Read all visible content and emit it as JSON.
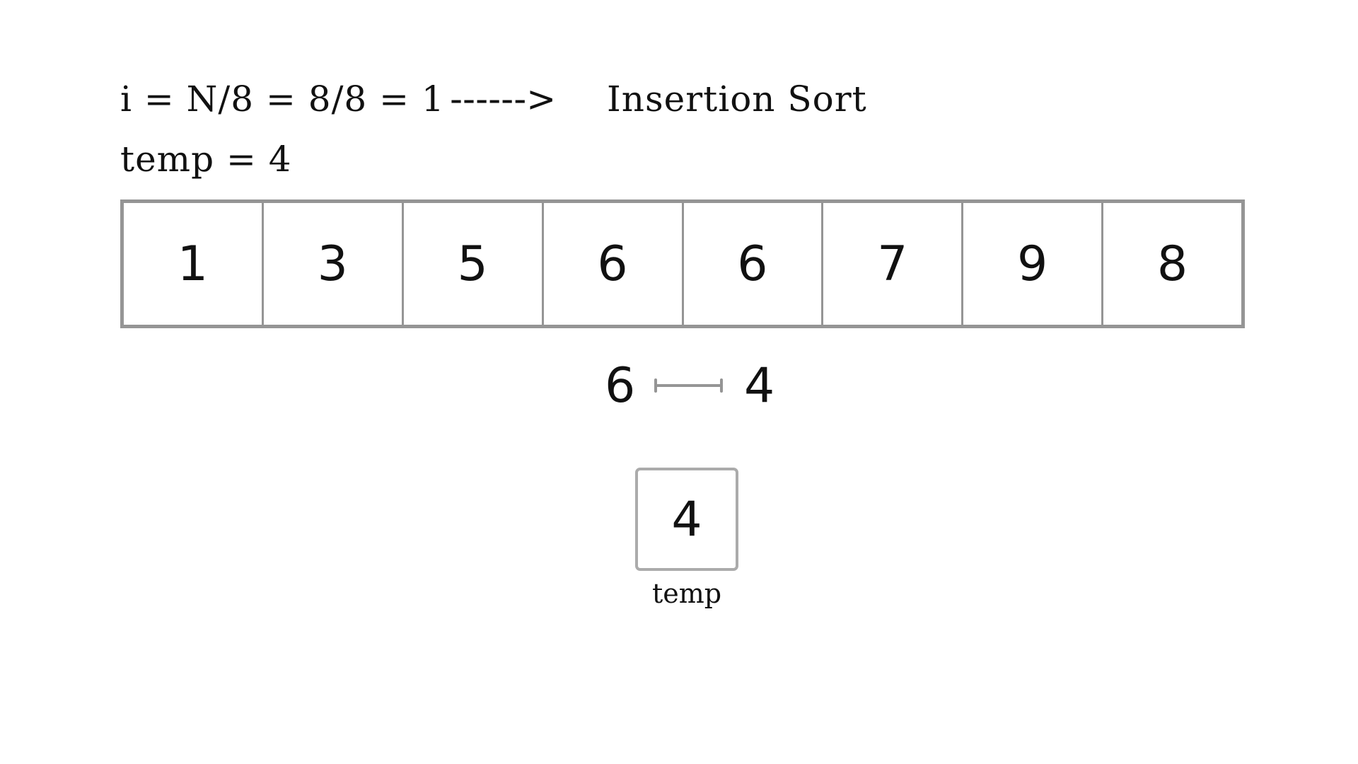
{
  "header": {
    "formula": "i = N/8 = 8/8 = 1",
    "arrow": "------>",
    "algorithm": "Insertion Sort",
    "temp_line": "temp = 4"
  },
  "array": {
    "values": [
      "1",
      "3",
      "5",
      "6",
      "6",
      "7",
      "9",
      "8"
    ]
  },
  "swap": {
    "left": "6",
    "right": "4",
    "connector_icon": "range-connector-icon"
  },
  "temp_box": {
    "value": "4",
    "label": "temp"
  },
  "colors": {
    "border": "#959595",
    "temp_border": "#ababab",
    "text": "#111111"
  }
}
